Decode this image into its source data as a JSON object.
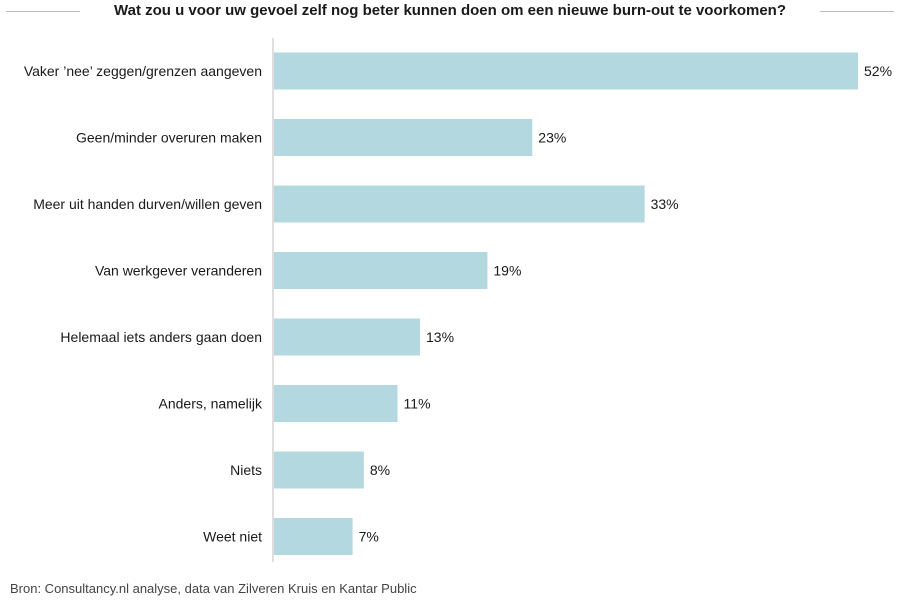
{
  "chart_data": {
    "type": "bar",
    "orientation": "horizontal",
    "title": "Wat zou u voor uw gevoel zelf nog beter kunnen doen om een nieuwe burn-out te voorkomen?",
    "categories": [
      "Vaker ’nee’ zeggen/grenzen aangeven",
      "Geen/minder overuren maken",
      "Meer uit handen durven/willen geven",
      "Van werkgever veranderen",
      "Helemaal iets anders gaan doen",
      "Anders, namelijk",
      "Niets",
      "Weet niet"
    ],
    "values": [
      52,
      23,
      33,
      19,
      13,
      11,
      8,
      7
    ],
    "value_labels": [
      "52%",
      "23%",
      "33%",
      "19%",
      "13%",
      "11%",
      "8%",
      "7%"
    ],
    "unit": "%",
    "xlim": [
      0,
      52
    ],
    "grid": false,
    "legend": "none",
    "bar_color": "#b3d8df",
    "axis_color": "#bdbdbd"
  },
  "source": "Bron: Consultancy.nl analyse, data van Zilveren Kruis en Kantar Public"
}
